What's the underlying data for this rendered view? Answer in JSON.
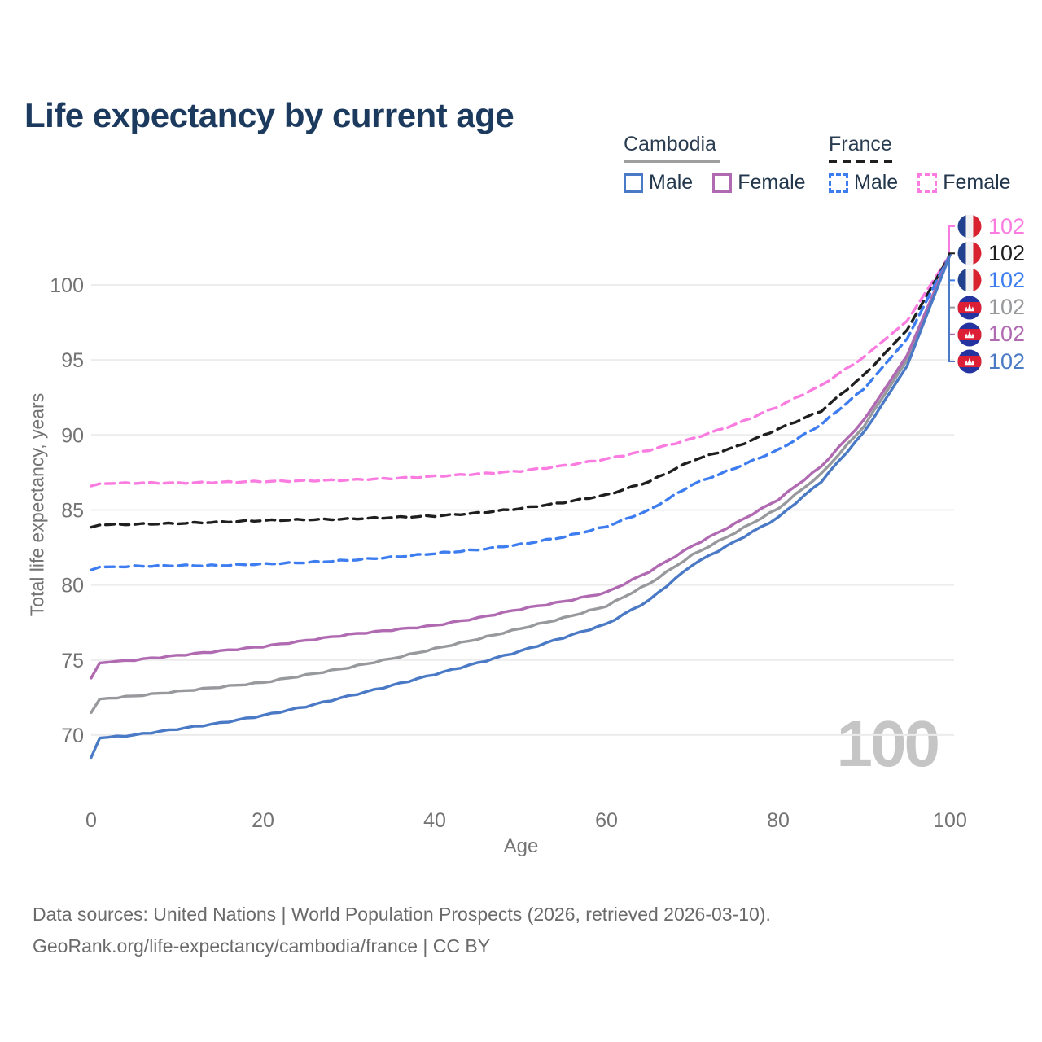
{
  "title": "Life expectancy by current age",
  "legend": {
    "groups": [
      {
        "name": "Cambodia",
        "line_style": "solid",
        "underline_color": "#9e9e9e",
        "items": [
          {
            "label": "Male",
            "color": "#4a79c5"
          },
          {
            "label": "Female",
            "color": "#b06ab2"
          }
        ]
      },
      {
        "name": "France",
        "line_style": "dashed",
        "underline_color": "#1f1f1f",
        "items": [
          {
            "label": "Male",
            "color": "#3d7df0"
          },
          {
            "label": "Female",
            "color": "#fa7ce0"
          }
        ]
      }
    ]
  },
  "watermark_age": "100",
  "footer": {
    "line1": "Data sources: United Nations | World Population Prospects (2026, retrieved 2026-03-10).",
    "line2": "GeoRank.org/life-expectancy/cambodia/france | CC BY"
  },
  "chart_data": {
    "type": "line",
    "title": "Life expectancy by current age",
    "xlabel": "Age",
    "ylabel": "Total life expectancy, years",
    "x_ticks": [
      0,
      20,
      40,
      60,
      80,
      100
    ],
    "y_ticks": [
      70,
      75,
      80,
      85,
      90,
      95,
      100
    ],
    "xlim": [
      0,
      100
    ],
    "ylim": [
      67.5,
      103
    ],
    "grid": "horizontal",
    "grid_color": "#ececec",
    "axis_text_color": "#737373",
    "legend_position": "top-right",
    "series": [
      {
        "name": "France Female",
        "country": "France",
        "group": "Female",
        "color": "#fa7ce0",
        "dash": true,
        "flag": "france",
        "points": [
          [
            0,
            86.6
          ],
          [
            1,
            86.75
          ],
          [
            5,
            86.8
          ],
          [
            10,
            86.8
          ],
          [
            15,
            86.85
          ],
          [
            20,
            86.9
          ],
          [
            25,
            86.95
          ],
          [
            30,
            87.0
          ],
          [
            35,
            87.1
          ],
          [
            40,
            87.25
          ],
          [
            45,
            87.4
          ],
          [
            50,
            87.6
          ],
          [
            55,
            87.95
          ],
          [
            60,
            88.4
          ],
          [
            65,
            89.0
          ],
          [
            70,
            89.75
          ],
          [
            75,
            90.7
          ],
          [
            80,
            91.9
          ],
          [
            85,
            93.3
          ],
          [
            90,
            95.2
          ],
          [
            95,
            97.6
          ],
          [
            100,
            102
          ]
        ]
      },
      {
        "name": "France",
        "country": "France",
        "group": "Both sexes",
        "color": "#1f1f1f",
        "dash": true,
        "flag": "france",
        "points": [
          [
            0,
            83.85
          ],
          [
            1,
            84.0
          ],
          [
            5,
            84.05
          ],
          [
            10,
            84.1
          ],
          [
            15,
            84.2
          ],
          [
            20,
            84.3
          ],
          [
            25,
            84.35
          ],
          [
            30,
            84.4
          ],
          [
            35,
            84.5
          ],
          [
            40,
            84.6
          ],
          [
            45,
            84.8
          ],
          [
            50,
            85.1
          ],
          [
            55,
            85.5
          ],
          [
            60,
            86.0
          ],
          [
            65,
            86.9
          ],
          [
            70,
            88.3
          ],
          [
            75,
            89.2
          ],
          [
            80,
            90.4
          ],
          [
            85,
            91.6
          ],
          [
            90,
            94.0
          ],
          [
            95,
            97.0
          ],
          [
            100,
            102
          ]
        ]
      },
      {
        "name": "France Male",
        "country": "France",
        "group": "Male",
        "color": "#3d7df0",
        "dash": true,
        "flag": "france",
        "points": [
          [
            0,
            81.0
          ],
          [
            1,
            81.2
          ],
          [
            5,
            81.25
          ],
          [
            10,
            81.3
          ],
          [
            15,
            81.3
          ],
          [
            20,
            81.4
          ],
          [
            25,
            81.5
          ],
          [
            30,
            81.65
          ],
          [
            35,
            81.85
          ],
          [
            40,
            82.1
          ],
          [
            45,
            82.35
          ],
          [
            50,
            82.7
          ],
          [
            55,
            83.2
          ],
          [
            60,
            83.9
          ],
          [
            65,
            85.0
          ],
          [
            70,
            86.7
          ],
          [
            75,
            87.8
          ],
          [
            80,
            89.0
          ],
          [
            85,
            90.7
          ],
          [
            90,
            93.1
          ],
          [
            95,
            96.4
          ],
          [
            100,
            102
          ]
        ]
      },
      {
        "name": "Cambodia",
        "country": "Cambodia",
        "group": "Both sexes",
        "color": "#97999c",
        "dash": false,
        "flag": "cambodia",
        "points": [
          [
            0,
            71.5
          ],
          [
            1,
            72.4
          ],
          [
            5,
            72.6
          ],
          [
            10,
            72.9
          ],
          [
            15,
            73.2
          ],
          [
            20,
            73.5
          ],
          [
            25,
            74.0
          ],
          [
            30,
            74.5
          ],
          [
            35,
            75.1
          ],
          [
            40,
            75.75
          ],
          [
            45,
            76.4
          ],
          [
            50,
            77.1
          ],
          [
            55,
            77.8
          ],
          [
            60,
            78.6
          ],
          [
            65,
            80.1
          ],
          [
            70,
            82.0
          ],
          [
            75,
            83.5
          ],
          [
            80,
            85.1
          ],
          [
            85,
            87.4
          ],
          [
            90,
            90.6
          ],
          [
            95,
            95.0
          ],
          [
            100,
            102
          ]
        ]
      },
      {
        "name": "Cambodia Female",
        "country": "Cambodia",
        "group": "Female",
        "color": "#b06ab2",
        "dash": false,
        "flag": "cambodia",
        "points": [
          [
            0,
            73.8
          ],
          [
            1,
            74.8
          ],
          [
            5,
            75.0
          ],
          [
            10,
            75.3
          ],
          [
            15,
            75.6
          ],
          [
            20,
            75.9
          ],
          [
            25,
            76.3
          ],
          [
            30,
            76.7
          ],
          [
            35,
            77.0
          ],
          [
            40,
            77.3
          ],
          [
            45,
            77.8
          ],
          [
            50,
            78.4
          ],
          [
            55,
            78.9
          ],
          [
            60,
            79.5
          ],
          [
            65,
            80.9
          ],
          [
            70,
            82.6
          ],
          [
            75,
            84.1
          ],
          [
            80,
            85.7
          ],
          [
            85,
            87.9
          ],
          [
            90,
            91.0
          ],
          [
            95,
            95.3
          ],
          [
            100,
            102
          ]
        ]
      },
      {
        "name": "Cambodia Male",
        "country": "Cambodia",
        "group": "Male",
        "color": "#4a79c5",
        "dash": false,
        "flag": "cambodia",
        "points": [
          [
            0,
            68.5
          ],
          [
            1,
            69.8
          ],
          [
            5,
            70.0
          ],
          [
            10,
            70.4
          ],
          [
            15,
            70.8
          ],
          [
            20,
            71.3
          ],
          [
            25,
            71.9
          ],
          [
            30,
            72.6
          ],
          [
            35,
            73.3
          ],
          [
            40,
            74.05
          ],
          [
            45,
            74.8
          ],
          [
            50,
            75.6
          ],
          [
            55,
            76.5
          ],
          [
            60,
            77.4
          ],
          [
            65,
            79.0
          ],
          [
            70,
            81.35
          ],
          [
            75,
            82.9
          ],
          [
            80,
            84.5
          ],
          [
            85,
            86.9
          ],
          [
            90,
            90.2
          ],
          [
            95,
            94.6
          ],
          [
            100,
            102
          ]
        ]
      }
    ],
    "end_labels": [
      {
        "series": "France Female",
        "flag": "france",
        "color": "#fa7ce0",
        "value": "102"
      },
      {
        "series": "France",
        "flag": "france",
        "color": "#1f1f1f",
        "value": "102"
      },
      {
        "series": "France Male",
        "flag": "france",
        "color": "#3d7df0",
        "value": "102"
      },
      {
        "series": "Cambodia",
        "flag": "cambodia",
        "color": "#97999c",
        "value": "102"
      },
      {
        "series": "Cambodia Female",
        "flag": "cambodia",
        "color": "#b06ab2",
        "value": "102"
      },
      {
        "series": "Cambodia Male",
        "flag": "cambodia",
        "color": "#4a79c5",
        "value": "102"
      }
    ]
  }
}
